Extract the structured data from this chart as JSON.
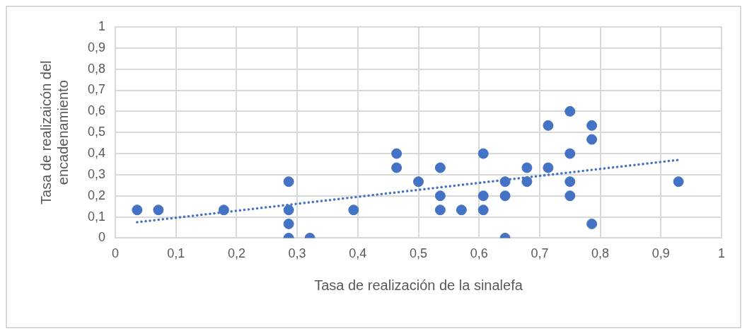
{
  "chart_data": {
    "type": "scatter",
    "xlabel": "Tasa de realización de la sinalefa",
    "ylabel": "Tasa de realizaicón del encadenamiento",
    "x": [
      0.036,
      0.071,
      0.179,
      0.286,
      0.286,
      0.286,
      0.286,
      0.321,
      0.393,
      0.464,
      0.464,
      0.5,
      0.536,
      0.536,
      0.536,
      0.571,
      0.607,
      0.607,
      0.607,
      0.643,
      0.643,
      0.643,
      0.679,
      0.679,
      0.714,
      0.714,
      0.75,
      0.75,
      0.75,
      0.75,
      0.786,
      0.786,
      0.786,
      0.929
    ],
    "series": [
      {
        "color": "#4472c4",
        "marker": "circle",
        "values": [
          0.133,
          0.133,
          0.133,
          0.267,
          0.133,
          0.067,
          0,
          0,
          0.133,
          0.4,
          0.333,
          0.267,
          0.333,
          0.2,
          0.133,
          0.133,
          0.4,
          0.2,
          0.133,
          0.267,
          0.2,
          0,
          0.333,
          0.267,
          0.533,
          0.333,
          0.6,
          0.4,
          0.267,
          0.2,
          0.533,
          0.467,
          0.067,
          0.267
        ]
      },
      {
        "type": "line",
        "color": "#4472c4",
        "line_style": "dotted",
        "marker": "none",
        "x": [
          0.036,
          0.929
        ],
        "values": [
          0.075,
          0.37
        ]
      }
    ],
    "xlim": [
      0,
      1
    ],
    "ylim": [
      0,
      1
    ],
    "xticks": [
      0,
      {
        "value": 0.1,
        "label": "0,1"
      },
      {
        "value": 0.2,
        "label": "0,2"
      },
      {
        "value": 0.3,
        "label": "0,3"
      },
      {
        "value": 0.4,
        "label": "0,4"
      },
      {
        "value": 0.5,
        "label": "0,5"
      },
      {
        "value": 0.6,
        "label": "0,6"
      },
      {
        "value": 0.7,
        "label": "0,7"
      },
      {
        "value": 0.8,
        "label": "0,8"
      },
      {
        "value": 0.9,
        "label": "0,9"
      },
      1
    ],
    "yticks": [
      0,
      {
        "value": 0.1,
        "label": "0,1"
      },
      {
        "value": 0.2,
        "label": "0,2"
      },
      {
        "value": 0.3,
        "label": "0,3"
      },
      {
        "value": 0.4,
        "label": "0,4"
      },
      {
        "value": 0.5,
        "label": "0,5"
      },
      {
        "value": 0.6,
        "label": "0,6"
      },
      {
        "value": 0.7,
        "label": "0,7"
      },
      {
        "value": 0.8,
        "label": "0,8"
      },
      {
        "value": 0.9,
        "label": "0,9"
      },
      1
    ],
    "grid": true,
    "legend": false
  }
}
